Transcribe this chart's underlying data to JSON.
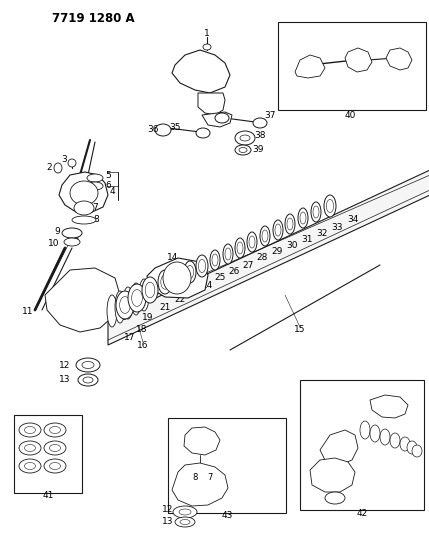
{
  "title": "7719 1280 A",
  "bg_color": "#ffffff",
  "line_color": "#1a1a1a",
  "title_fontsize": 8.5,
  "label_fontsize": 6.5,
  "fig_width": 4.29,
  "fig_height": 5.33,
  "dpi": 100
}
